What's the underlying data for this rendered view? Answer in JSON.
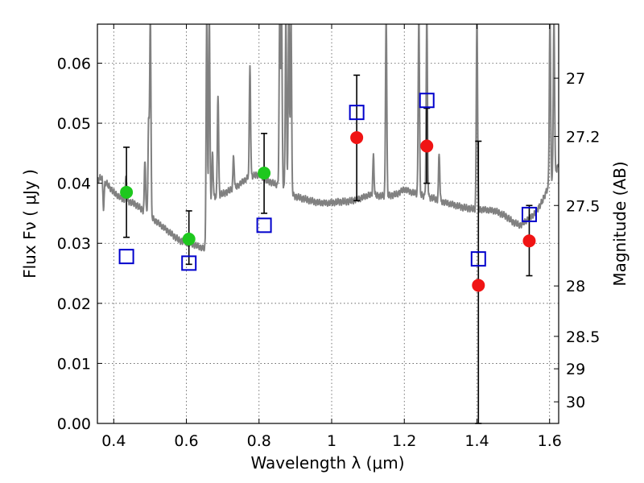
{
  "chart_data": {
    "type": "scatter",
    "xlabel": "Wavelength  λ (μm)",
    "ylabel": "Flux  Fν  ( μJy )",
    "y2label": "Magnitude (AB)",
    "xlim": [
      0.355,
      1.625
    ],
    "ylim": [
      0.0,
      0.0665
    ],
    "grid": true,
    "x_ticks": [
      {
        "value": 0.4,
        "label": "0.4"
      },
      {
        "value": 0.6,
        "label": "0.6"
      },
      {
        "value": 0.8,
        "label": "0.8"
      },
      {
        "value": 1.0,
        "label": "1"
      },
      {
        "value": 1.2,
        "label": "1.2"
      },
      {
        "value": 1.4,
        "label": "1.4"
      },
      {
        "value": 1.6,
        "label": "1.6"
      }
    ],
    "y_ticks": [
      {
        "value": 0.0,
        "label": "0.00"
      },
      {
        "value": 0.01,
        "label": "0.01"
      },
      {
        "value": 0.02,
        "label": "0.02"
      },
      {
        "value": 0.03,
        "label": "0.03"
      },
      {
        "value": 0.04,
        "label": "0.04"
      },
      {
        "value": 0.05,
        "label": "0.05"
      },
      {
        "value": 0.06,
        "label": "0.06"
      }
    ],
    "y2_ticks": [
      {
        "flux": 0.0575,
        "label": "27"
      },
      {
        "flux": 0.0478,
        "label": "27.2"
      },
      {
        "flux": 0.0363,
        "label": "27.5"
      },
      {
        "flux": 0.0229,
        "label": "28"
      },
      {
        "flux": 0.0145,
        "label": "28.5"
      },
      {
        "flux": 0.0091,
        "label": "29"
      },
      {
        "flux": 0.0036,
        "label": "30"
      }
    ],
    "colors": {
      "spectrum": "#808080",
      "optical_points": "#1ec81e",
      "nir_points": "#f01414",
      "model_points": "#0000cc",
      "errorbars": "#000000"
    },
    "spectrum": {
      "name": "",
      "continuum": [
        [
          0.355,
          0.0405
        ],
        [
          0.365,
          0.041
        ],
        [
          0.38,
          0.04
        ],
        [
          0.4,
          0.0385
        ],
        [
          0.42,
          0.0375
        ],
        [
          0.44,
          0.037
        ],
        [
          0.46,
          0.0365
        ],
        [
          0.48,
          0.0355
        ],
        [
          0.5,
          0.0345
        ],
        [
          0.52,
          0.0335
        ],
        [
          0.54,
          0.0325
        ],
        [
          0.56,
          0.0315
        ],
        [
          0.58,
          0.0305
        ],
        [
          0.6,
          0.0302
        ],
        [
          0.62,
          0.0298
        ],
        [
          0.64,
          0.0293
        ],
        [
          0.655,
          0.029
        ],
        [
          0.662,
          0.0355
        ],
        [
          0.67,
          0.0375
        ],
        [
          0.69,
          0.038
        ],
        [
          0.71,
          0.0385
        ],
        [
          0.74,
          0.0395
        ],
        [
          0.77,
          0.041
        ],
        [
          0.8,
          0.0415
        ],
        [
          0.82,
          0.0405
        ],
        [
          0.84,
          0.04
        ],
        [
          0.86,
          0.0395
        ],
        [
          0.87,
          0.0393
        ],
        [
          0.88,
          0.0385
        ],
        [
          0.9,
          0.0378
        ],
        [
          0.93,
          0.0373
        ],
        [
          0.96,
          0.0368
        ],
        [
          0.99,
          0.0367
        ],
        [
          1.02,
          0.0369
        ],
        [
          1.05,
          0.037
        ],
        [
          1.08,
          0.0375
        ],
        [
          1.1,
          0.038
        ],
        [
          1.12,
          0.038
        ],
        [
          1.15,
          0.0378
        ],
        [
          1.18,
          0.0382
        ],
        [
          1.2,
          0.039
        ],
        [
          1.22,
          0.0385
        ],
        [
          1.25,
          0.038
        ],
        [
          1.28,
          0.0375
        ],
        [
          1.3,
          0.037
        ],
        [
          1.33,
          0.0365
        ],
        [
          1.36,
          0.036
        ],
        [
          1.39,
          0.0357
        ],
        [
          1.42,
          0.0356
        ],
        [
          1.45,
          0.0354
        ],
        [
          1.48,
          0.0345
        ],
        [
          1.5,
          0.0335
        ],
        [
          1.52,
          0.033
        ],
        [
          1.54,
          0.034
        ],
        [
          1.56,
          0.035
        ],
        [
          1.58,
          0.037
        ],
        [
          1.6,
          0.04
        ],
        [
          1.625,
          0.043
        ]
      ],
      "lines": [
        {
          "x": 0.372,
          "peak": 0.036
        },
        {
          "x": 0.434,
          "peak": 0.041
        },
        {
          "x": 0.486,
          "peak": 0.044
        },
        {
          "x": 0.496,
          "peak": 0.05
        },
        {
          "x": 0.5007,
          "peak": 0.068
        },
        {
          "x": 0.656,
          "peak": 0.068
        },
        {
          "x": 0.663,
          "peak": 0.068
        },
        {
          "x": 0.672,
          "peak": 0.045
        },
        {
          "x": 0.687,
          "peak": 0.055
        },
        {
          "x": 0.73,
          "peak": 0.0445
        },
        {
          "x": 0.775,
          "peak": 0.0595
        },
        {
          "x": 0.857,
          "peak": 0.068
        },
        {
          "x": 0.862,
          "peak": 0.068
        },
        {
          "x": 0.874,
          "peak": 0.068
        },
        {
          "x": 0.882,
          "peak": 0.068
        },
        {
          "x": 0.888,
          "peak": 0.068
        },
        {
          "x": 1.115,
          "peak": 0.0445
        },
        {
          "x": 1.15,
          "peak": 0.068
        },
        {
          "x": 1.24,
          "peak": 0.068
        },
        {
          "x": 1.262,
          "peak": 0.068
        },
        {
          "x": 1.296,
          "peak": 0.045
        },
        {
          "x": 1.4,
          "peak": 0.068
        },
        {
          "x": 1.601,
          "peak": 0.068
        },
        {
          "x": 1.612,
          "peak": 0.068
        }
      ]
    },
    "series": [
      {
        "name": "",
        "marker": "filled-circle",
        "color": "#1ec81e",
        "points": [
          {
            "x": 0.435,
            "y": 0.0385,
            "yerr_low": 0.031,
            "yerr_high": 0.046
          },
          {
            "x": 0.607,
            "y": 0.0307,
            "yerr_low": 0.0265,
            "yerr_high": 0.0354
          },
          {
            "x": 0.814,
            "y": 0.0417,
            "yerr_low": 0.035,
            "yerr_high": 0.0483
          }
        ]
      },
      {
        "name": "",
        "marker": "filled-circle",
        "color": "#f01414",
        "points": [
          {
            "x": 1.069,
            "y": 0.0476,
            "yerr_low": 0.0371,
            "yerr_high": 0.058
          },
          {
            "x": 1.262,
            "y": 0.0462,
            "yerr_low": 0.04,
            "yerr_high": 0.0525
          },
          {
            "x": 1.404,
            "y": 0.023,
            "yerr_low": 0.0,
            "yerr_high": 0.047
          },
          {
            "x": 1.544,
            "y": 0.0304,
            "yerr_low": 0.0246,
            "yerr_high": 0.0363
          }
        ]
      },
      {
        "name": "",
        "marker": "open-square",
        "color": "#0000cc",
        "points": [
          {
            "x": 0.435,
            "y": 0.0278
          },
          {
            "x": 0.607,
            "y": 0.0267
          },
          {
            "x": 0.814,
            "y": 0.033
          },
          {
            "x": 1.069,
            "y": 0.0518
          },
          {
            "x": 1.262,
            "y": 0.0538
          },
          {
            "x": 1.404,
            "y": 0.0274
          },
          {
            "x": 1.544,
            "y": 0.0348
          }
        ]
      }
    ]
  }
}
